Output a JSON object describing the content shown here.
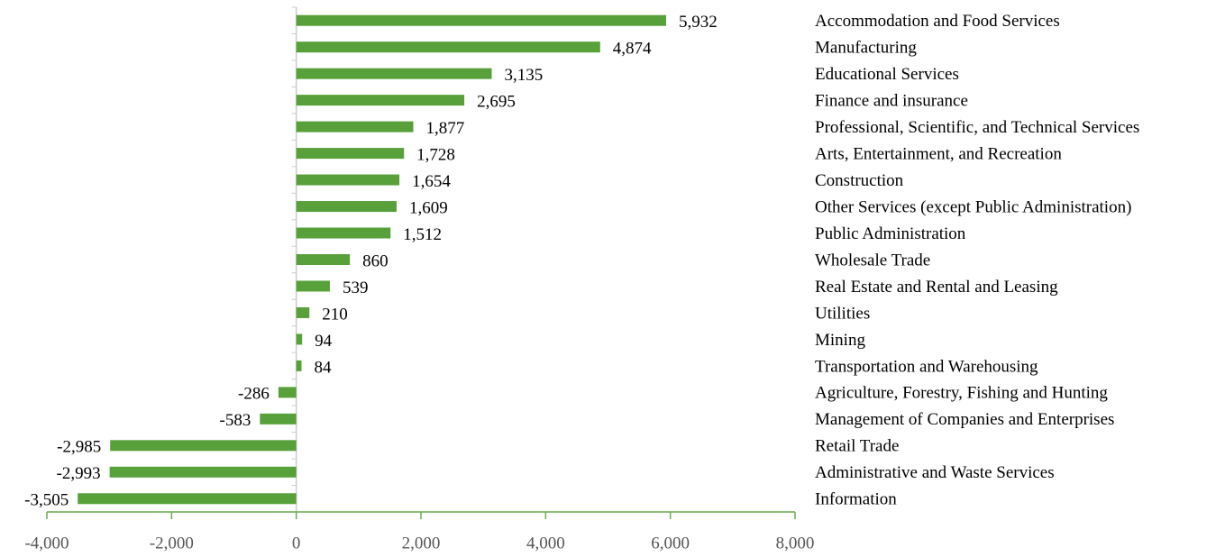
{
  "chart_data": {
    "type": "bar",
    "orientation": "horizontal",
    "categories": [
      "Accommodation and Food Services",
      "Manufacturing",
      "Educational Services",
      "Finance and insurance",
      "Professional, Scientific, and Technical Services",
      "Arts, Entertainment, and Recreation",
      "Construction",
      "Other Services (except Public Administration)",
      "Public Administration",
      "Wholesale Trade",
      "Real Estate and Rental and Leasing",
      "Utilities",
      "Mining",
      "Transportation and Warehousing",
      "Agriculture, Forestry, Fishing and Hunting",
      "Management of Companies and Enterprises",
      "Retail Trade",
      "Administrative and Waste Services",
      "Information"
    ],
    "values": [
      5932,
      4874,
      3135,
      2695,
      1877,
      1728,
      1654,
      1609,
      1512,
      860,
      539,
      210,
      94,
      84,
      -286,
      -583,
      -2985,
      -2993,
      -3505
    ],
    "value_labels": [
      "5,932",
      "4,874",
      "3,135",
      "2,695",
      "1,877",
      "1,728",
      "1,654",
      "1,609",
      "1,512",
      "860",
      "539",
      "210",
      "94",
      "84",
      "-286",
      "-583",
      "-2,985",
      "-2,993",
      "-3,505"
    ],
    "color": "#57a03a",
    "xlim": [
      -4000,
      8000
    ],
    "xticks": [
      {
        "value": -4000,
        "label": "-4,000"
      },
      {
        "value": -2000,
        "label": "-2,000"
      },
      0,
      {
        "value": 2000,
        "label": "2,000"
      },
      {
        "value": 4000,
        "label": "4,000"
      },
      {
        "value": 6000,
        "label": "6,000"
      },
      {
        "value": 8000,
        "label": "8,000"
      }
    ],
    "grid": false
  }
}
